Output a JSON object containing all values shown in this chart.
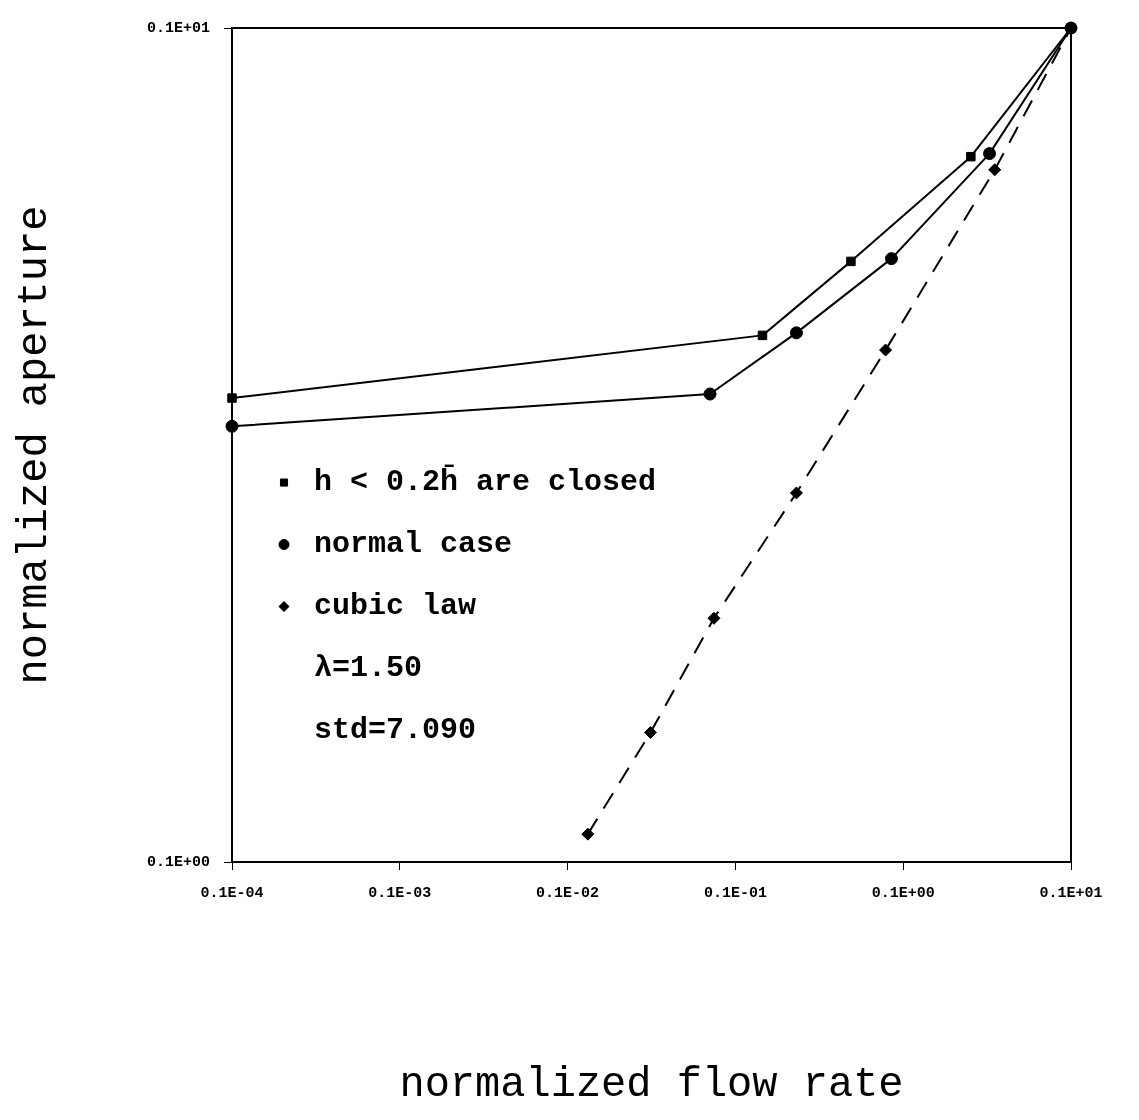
{
  "chart_data": {
    "type": "line",
    "xlabel": "normalized flow rate",
    "ylabel": "normalized aperture",
    "log": "xy",
    "grid": false,
    "legend": "center left",
    "xlim": [
      1e-05,
      1
    ],
    "ylim": [
      0.1,
      1
    ],
    "xticks": [
      {
        "value": 1e-05,
        "label": "0.1E-04"
      },
      {
        "value": 0.0001,
        "label": "0.1E-03"
      },
      {
        "value": 0.001,
        "label": "0.1E-02"
      },
      {
        "value": 0.01,
        "label": "0.1E-01"
      },
      {
        "value": 0.1,
        "label": "0.1E+00"
      },
      {
        "value": 1,
        "label": "0.1E+01"
      }
    ],
    "yticks": [
      {
        "value": 0.1,
        "label": "0.1E+00"
      },
      {
        "value": 1,
        "label": "0.1E+01"
      }
    ],
    "series": [
      {
        "name": "h < 0.2h̄ are closed",
        "color": "#000000",
        "marker": "square",
        "line_style": "solid",
        "x": [
          1e-05,
          0.0145,
          0.0488,
          0.253,
          1
        ],
        "values": [
          0.36,
          0.428,
          0.525,
          0.701,
          1
        ]
      },
      {
        "name": "normal case",
        "color": "#000000",
        "marker": "circle",
        "line_style": "solid",
        "x": [
          1e-05,
          0.00706,
          0.0231,
          0.0851,
          0.327,
          1
        ],
        "values": [
          0.333,
          0.364,
          0.431,
          0.529,
          0.707,
          1
        ]
      },
      {
        "name": "cubic law",
        "color": "#000000",
        "marker": "diamond",
        "line_style": "dashed",
        "x": [
          0.00132,
          0.00312,
          0.00745,
          0.0231,
          0.0785,
          0.351,
          1
        ],
        "values": [
          0.108,
          0.143,
          0.196,
          0.277,
          0.411,
          0.676,
          1
        ]
      }
    ],
    "annotations": [
      "λ=1.50",
      "std=7.090"
    ]
  }
}
